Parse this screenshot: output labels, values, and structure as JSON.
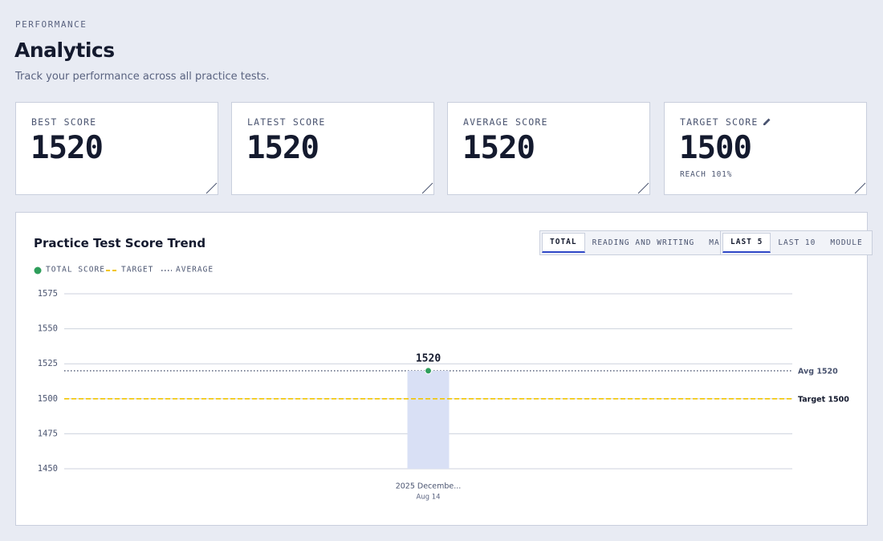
{
  "header": {
    "eyebrow": "PERFORMANCE",
    "title": "Analytics",
    "subtitle": "Track your performance across all practice tests."
  },
  "stats": [
    {
      "label": "BEST SCORE",
      "value": 1520
    },
    {
      "label": "LATEST SCORE",
      "value": 1520
    },
    {
      "label": "AVERAGE SCORE",
      "value": 1520
    },
    {
      "label": "TARGET SCORE",
      "value": 1500,
      "note": "REACH 101%"
    }
  ],
  "chart_data": {
    "type": "bar",
    "title": "Practice Test Score Trend",
    "tabs": [
      "TOTAL",
      "READING AND WRITING",
      "MATH"
    ],
    "active_tab": 0,
    "ranges": [
      "LAST 5",
      "LAST 10",
      "MODULE"
    ],
    "active_range": 0,
    "categories": [
      "2025 Decembe..."
    ],
    "sublabels": [
      "Aug 14"
    ],
    "series": [
      {
        "name": "TOTAL SCORE",
        "color": "#2e9e5b",
        "bar_color": "#d9e0f5",
        "values": [
          1520
        ]
      }
    ],
    "target": {
      "name": "TARGET",
      "value": 1500,
      "label": "Target 1500",
      "color": "#f2c500"
    },
    "average": {
      "name": "AVERAGE",
      "value": 1520,
      "label": "Avg 1520",
      "color": "#4a5470"
    },
    "ylim": [
      1450,
      1575
    ],
    "yticks": [
      1450,
      1475,
      1500,
      1525,
      1550,
      1575
    ],
    "grid": true
  }
}
